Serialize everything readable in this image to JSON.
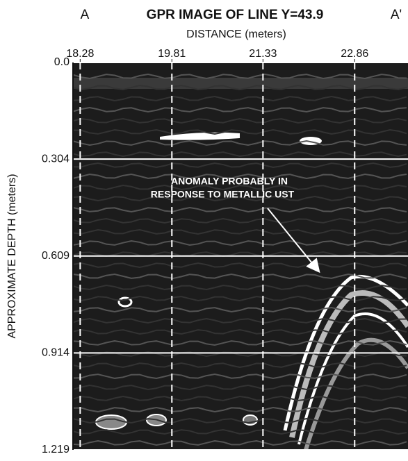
{
  "chart_data": {
    "type": "image",
    "title": "GPR IMAGE OF LINE Y=43.9",
    "start_label": "A",
    "end_label": "A'",
    "x_label": "DISTANCE (meters)",
    "y_label": "APPROXIMATE DEPTH (meters)",
    "annotation": [
      "ANOMALY PROBABLY IN",
      "RESPONSE TO METALLIC UST"
    ],
    "xlim": [
      18.16,
      23.75
    ],
    "xticks": [
      18.28,
      19.81,
      21.33,
      22.86
    ],
    "ylim": [
      0,
      1.219
    ],
    "y_inverted": true,
    "yticks": [
      {
        "value": 0,
        "label": "0.0"
      },
      0.304,
      0.609,
      0.914,
      1.219
    ],
    "grid": true
  }
}
